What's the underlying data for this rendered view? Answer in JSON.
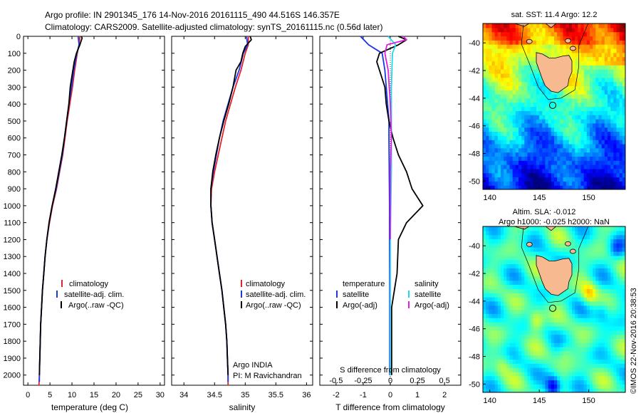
{
  "header": {
    "line1": "Argo profile: IN 2901345_176 14-Nov-2016 20161115_490 44.516S 146.357E",
    "line2": "Climatology: CARS2009. Satellite-adjusted climatology: synTS_20161115.nc (0.56d later)"
  },
  "colors": {
    "clim": "#e8202a",
    "sat": "#1a36e6",
    "argo": "#000000",
    "sat_s": "#22d6ea",
    "argo_s": "#e020e0",
    "land": "#f7b990"
  },
  "depth_ticks": [
    "0",
    "100",
    "200",
    "300",
    "400",
    "500",
    "600",
    "700",
    "800",
    "900",
    "1000",
    "1100",
    "1200",
    "1300",
    "1400",
    "1500",
    "1600",
    "1700",
    "1800",
    "1900",
    "2000"
  ],
  "chart_data": [
    {
      "type": "line",
      "xlabel": "temperature (deg C)",
      "xticks": [
        "0",
        "5",
        "10",
        "15",
        "20",
        "25",
        "30"
      ],
      "xlim": [
        -1,
        31
      ],
      "ylim": [
        0,
        2060
      ],
      "legend": [
        "climatology",
        "satellite-adj. clim.",
        "Argo(..raw -QC)"
      ],
      "series": [
        {
          "name": "climatology",
          "points": [
            [
              11.8,
              0
            ],
            [
              11.6,
              50
            ],
            [
              11.2,
              100
            ],
            [
              10.6,
              200
            ],
            [
              10.1,
              300
            ],
            [
              9.5,
              400
            ],
            [
              8.9,
              500
            ],
            [
              8.4,
              600
            ],
            [
              7.9,
              700
            ],
            [
              7.2,
              800
            ],
            [
              6.5,
              900
            ],
            [
              5.6,
              1000
            ],
            [
              4.9,
              1100
            ],
            [
              4.3,
              1200
            ],
            [
              3.9,
              1300
            ],
            [
              3.6,
              1400
            ],
            [
              3.3,
              1500
            ],
            [
              3.1,
              1600
            ],
            [
              2.9,
              1700
            ],
            [
              2.8,
              1800
            ],
            [
              2.7,
              1900
            ],
            [
              2.6,
              2000
            ],
            [
              2.5,
              2060
            ]
          ]
        },
        {
          "name": "satellite-adj. clim.",
          "points": [
            [
              11.4,
              0
            ],
            [
              11.6,
              50
            ],
            [
              11.1,
              100
            ],
            [
              10.4,
              200
            ],
            [
              9.9,
              300
            ],
            [
              9.3,
              400
            ],
            [
              8.8,
              500
            ],
            [
              8.3,
              600
            ],
            [
              7.8,
              700
            ],
            [
              7.1,
              800
            ],
            [
              6.4,
              900
            ],
            [
              5.5,
              1000
            ],
            [
              4.8,
              1100
            ],
            [
              4.3,
              1200
            ],
            [
              3.9,
              1300
            ],
            [
              3.6,
              1400
            ],
            [
              3.3,
              1500
            ],
            [
              3.1,
              1600
            ],
            [
              2.9,
              1700
            ],
            [
              2.8,
              1800
            ],
            [
              2.7,
              1900
            ],
            [
              2.6,
              2000
            ],
            [
              2.6,
              2040
            ]
          ]
        },
        {
          "name": "Argo(..raw -QC)",
          "points": [
            [
              12.1,
              0
            ],
            [
              12.3,
              10
            ],
            [
              11.8,
              50
            ],
            [
              11.0,
              100
            ],
            [
              10.5,
              150
            ],
            [
              9.9,
              250
            ],
            [
              9.6,
              300
            ],
            [
              9.3,
              400
            ],
            [
              8.8,
              500
            ],
            [
              8.3,
              600
            ],
            [
              7.7,
              700
            ],
            [
              7.0,
              800
            ],
            [
              6.3,
              900
            ],
            [
              5.5,
              1000
            ],
            [
              4.8,
              1100
            ],
            [
              4.3,
              1200
            ],
            [
              3.9,
              1300
            ],
            [
              3.6,
              1400
            ],
            [
              3.3,
              1500
            ],
            [
              3.1,
              1600
            ],
            [
              2.9,
              1700
            ],
            [
              2.8,
              1800
            ],
            [
              2.7,
              1900
            ],
            [
              2.6,
              2000
            ]
          ]
        }
      ]
    },
    {
      "type": "line",
      "xlabel": "salinity",
      "xticks": [
        "34",
        "34.5",
        "35",
        "35.5",
        "36"
      ],
      "xlim": [
        33.8,
        36.1
      ],
      "ylim": [
        0,
        2060
      ],
      "legend": [
        "climatology",
        "satellite-adj. clim.",
        "Argo(..raw -QC)"
      ],
      "annotation": [
        "Argo INDIA",
        "PI: M Ravichandran"
      ],
      "series": [
        {
          "name": "climatology",
          "points": [
            [
              35.05,
              0
            ],
            [
              35.05,
              50
            ],
            [
              35.0,
              100
            ],
            [
              34.93,
              200
            ],
            [
              34.84,
              300
            ],
            [
              34.76,
              400
            ],
            [
              34.68,
              500
            ],
            [
              34.62,
              600
            ],
            [
              34.56,
              700
            ],
            [
              34.5,
              800
            ],
            [
              34.45,
              900
            ],
            [
              34.44,
              1000
            ],
            [
              34.46,
              1100
            ],
            [
              34.5,
              1200
            ],
            [
              34.54,
              1300
            ],
            [
              34.58,
              1400
            ],
            [
              34.62,
              1500
            ],
            [
              34.65,
              1600
            ],
            [
              34.68,
              1700
            ],
            [
              34.7,
              1800
            ],
            [
              34.71,
              1900
            ],
            [
              34.72,
              2000
            ],
            [
              34.72,
              2060
            ]
          ]
        },
        {
          "name": "satellite-adj. clim.",
          "points": [
            [
              35.02,
              0
            ],
            [
              35.04,
              50
            ],
            [
              34.97,
              100
            ],
            [
              34.9,
              200
            ],
            [
              34.8,
              300
            ],
            [
              34.72,
              400
            ],
            [
              34.64,
              500
            ],
            [
              34.58,
              600
            ],
            [
              34.53,
              700
            ],
            [
              34.48,
              800
            ],
            [
              34.44,
              900
            ],
            [
              34.44,
              1000
            ],
            [
              34.46,
              1100
            ],
            [
              34.5,
              1200
            ],
            [
              34.54,
              1300
            ],
            [
              34.58,
              1400
            ],
            [
              34.62,
              1500
            ],
            [
              34.65,
              1600
            ],
            [
              34.68,
              1700
            ],
            [
              34.7,
              1800
            ],
            [
              34.71,
              1900
            ],
            [
              34.72,
              2000
            ],
            [
              34.72,
              2040
            ]
          ]
        },
        {
          "name": "Argo(..raw -QC)",
          "points": [
            [
              35.08,
              0
            ],
            [
              35.1,
              20
            ],
            [
              35.0,
              60
            ],
            [
              34.96,
              100
            ],
            [
              34.93,
              150
            ],
            [
              34.85,
              200
            ],
            [
              34.8,
              300
            ],
            [
              34.73,
              400
            ],
            [
              34.65,
              500
            ],
            [
              34.58,
              600
            ],
            [
              34.52,
              700
            ],
            [
              34.47,
              800
            ],
            [
              34.44,
              900
            ],
            [
              34.44,
              1000
            ],
            [
              34.46,
              1100
            ],
            [
              34.5,
              1200
            ],
            [
              34.54,
              1300
            ],
            [
              34.58,
              1400
            ],
            [
              34.62,
              1500
            ],
            [
              34.65,
              1600
            ],
            [
              34.68,
              1700
            ],
            [
              34.7,
              1800
            ],
            [
              34.71,
              1900
            ],
            [
              34.72,
              2000
            ]
          ]
        }
      ]
    },
    {
      "type": "line",
      "xlabel": "T difference from climatology",
      "xlabel_top": "S difference from climatology",
      "xticks": [
        "-2",
        "-1",
        "0",
        "1",
        "2"
      ],
      "xticks_top": [
        "-0.5",
        "-0.25",
        "0",
        "0.25",
        "0.5"
      ],
      "xlim": [
        -2.6,
        2.6
      ],
      "ylim": [
        0,
        2060
      ],
      "legend_left_title": "temperature",
      "legend_right_title": "salinity",
      "legend_left": [
        "satellite",
        "Argo(-adj)"
      ],
      "legend_right": [
        "satellite",
        "Argo(-adj)"
      ],
      "series": [
        {
          "name": "temperature satellite",
          "points": [
            [
              -1.1,
              0
            ],
            [
              -0.8,
              50
            ],
            [
              -0.3,
              100
            ],
            [
              -0.2,
              200
            ],
            [
              -0.15,
              300
            ],
            [
              -0.1,
              400
            ],
            [
              -0.05,
              500
            ],
            [
              -0.05,
              600
            ],
            [
              -0.04,
              800
            ],
            [
              -0.03,
              1000
            ],
            [
              -0.03,
              1200
            ],
            [
              -0.02,
              1500
            ],
            [
              -0.02,
              2000
            ]
          ]
        },
        {
          "name": "temperature Argo(-adj)",
          "points": [
            [
              0.3,
              0
            ],
            [
              0.6,
              20
            ],
            [
              0.3,
              50
            ],
            [
              -0.4,
              100
            ],
            [
              -0.5,
              150
            ],
            [
              -0.2,
              300
            ],
            [
              -0.15,
              400
            ],
            [
              -0.05,
              500
            ],
            [
              0.1,
              600
            ],
            [
              0.3,
              700
            ],
            [
              0.6,
              800
            ],
            [
              0.8,
              900
            ],
            [
              1.2,
              1000
            ],
            [
              0.6,
              1100
            ],
            [
              0.3,
              1200
            ],
            [
              0.25,
              1400
            ],
            [
              0.15,
              1500
            ],
            [
              0.05,
              1600
            ],
            [
              0.05,
              1800
            ],
            [
              0.05,
              2000
            ]
          ]
        },
        {
          "name": "salinity satellite",
          "points": [
            [
              -0.02,
              0
            ],
            [
              0.05,
              50
            ],
            [
              0.02,
              100
            ],
            [
              0.01,
              300
            ],
            [
              0.01,
              500
            ],
            [
              0.01,
              800
            ],
            [
              0.0,
              1200
            ],
            [
              0.0,
              2000
            ]
          ]
        },
        {
          "name": "salinity Argo(-adj)",
          "points": [
            [
              0.12,
              0
            ],
            [
              0.15,
              20
            ],
            [
              -0.03,
              50
            ],
            [
              -0.05,
              100
            ],
            [
              -0.02,
              200
            ],
            [
              0.0,
              400
            ],
            [
              0.01,
              600
            ],
            [
              0.0,
              800
            ],
            [
              0.0,
              1000
            ],
            [
              0.0,
              1200
            ]
          ]
        }
      ]
    },
    {
      "type": "heatmap",
      "title": "sat. SST: 11.4 Argo: 12.2",
      "xticks": [
        "140",
        "145",
        "150"
      ],
      "yticks": [
        "-40",
        "-42",
        "-44",
        "-46",
        "-48",
        "-50"
      ],
      "xlim": [
        139.3,
        153.7
      ],
      "ylim": [
        -50.6,
        -38.6
      ],
      "marker": {
        "lon": 146.357,
        "lat": -44.516
      }
    },
    {
      "type": "heatmap",
      "title": "Altim. SLA: -0.012",
      "subtitle": "Argo h1000: -0.025 h2000: NaN",
      "xticks": [
        "140",
        "145",
        "150"
      ],
      "yticks": [
        "-40",
        "-42",
        "-44",
        "-46",
        "-48",
        "-50"
      ],
      "xlim": [
        139.3,
        153.7
      ],
      "ylim": [
        -50.6,
        -38.6
      ],
      "marker": {
        "lon": 146.357,
        "lat": -44.516
      }
    }
  ],
  "footer": {
    "credit": "©IMOS 22-Nov-2016 20:38:53"
  }
}
